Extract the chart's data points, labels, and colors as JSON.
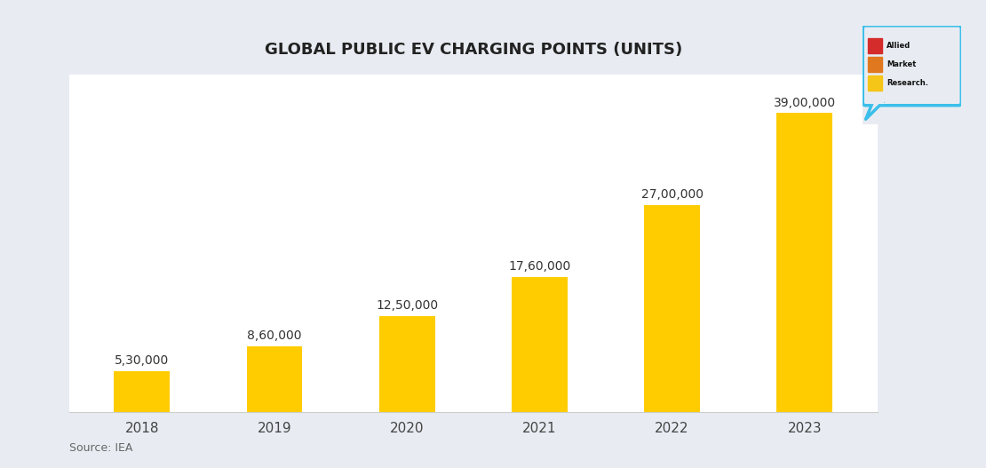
{
  "title": "GLOBAL PUBLIC EV CHARGING POINTS (UNITS)",
  "categories": [
    "2018",
    "2019",
    "2020",
    "2021",
    "2022",
    "2023"
  ],
  "values": [
    530000,
    860000,
    1250000,
    1760000,
    2700000,
    3900000
  ],
  "labels": [
    "5,30,000",
    "8,60,000",
    "12,50,000",
    "17,60,000",
    "27,00,000",
    "39,00,000"
  ],
  "bar_color": "#FFCC00",
  "fig_bg_color": "#E8ECF2",
  "plot_bg_color": "#FFFFFF",
  "title_fontsize": 13,
  "label_fontsize": 10,
  "tick_fontsize": 11,
  "source_text": "Source: IEA",
  "ylim": [
    0,
    4400000
  ],
  "logo_blue": "#3BBFEA",
  "logo_red": "#D42B2B",
  "logo_orange": "#E07820",
  "logo_yellow": "#F5C518"
}
